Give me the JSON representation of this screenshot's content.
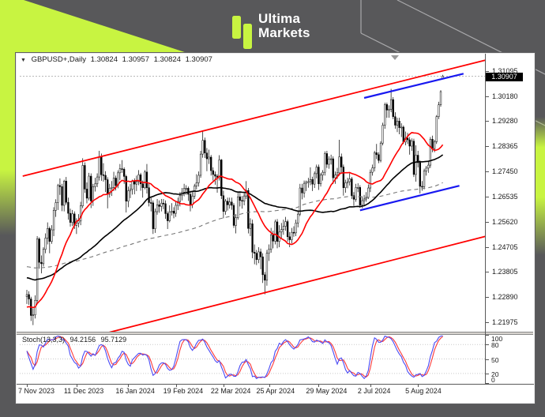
{
  "brand": {
    "line1": "Ultima",
    "line2": "Markets",
    "accent_green": "#c8f441",
    "background_gray": "#58585a"
  },
  "window": {
    "title": "GBPUSD+,Daily",
    "ohlc": {
      "open": "1.30824",
      "high": "1.30957",
      "low": "1.30824",
      "close": "1.30907"
    },
    "dropdown_icon": "▼"
  },
  "price_axis": {
    "labels": [
      "1.31095",
      "1.30180",
      "1.29280",
      "1.28365",
      "1.27450",
      "1.26535",
      "1.25620",
      "1.24705",
      "1.23805",
      "1.22890",
      "1.21975"
    ],
    "current": "1.30907"
  },
  "time_axis": {
    "ticks": [
      {
        "label": "7 Nov 2023",
        "bar": 0
      },
      {
        "label": "11 Dec 2023",
        "bar": 24
      },
      {
        "label": "16 Jan 2024",
        "bar": 49
      },
      {
        "label": "19 Feb 2024",
        "bar": 72
      },
      {
        "label": "22 Mar 2024",
        "bar": 95
      },
      {
        "label": "25 Apr 2024",
        "bar": 117
      },
      {
        "label": "29 May 2024",
        "bar": 141
      },
      {
        "label": "2 Jul 2024",
        "bar": 166
      },
      {
        "label": "5 Aug 2024",
        "bar": 189
      }
    ]
  },
  "stoch": {
    "label": "Stoch(13,3,3)",
    "value_k": "94.2156",
    "value_d": "95.7129",
    "scale": [
      "100",
      "80",
      "50",
      "20",
      "0"
    ],
    "levels": [
      80,
      50,
      20
    ]
  },
  "chart_data": {
    "type": "candlestick",
    "symbol": "GBPUSD+",
    "timeframe": "Daily",
    "last_ohlc": [
      1.30824,
      1.30957,
      1.30824,
      1.30907
    ],
    "y_range_visible": [
      1.216,
      1.3173
    ],
    "bid_line": 1.30907,
    "candles": [
      [
        1.229,
        1.2315,
        1.2264,
        1.2298
      ],
      [
        1.2298,
        1.231,
        1.2261,
        1.2282
      ],
      [
        1.2282,
        1.229,
        1.2202,
        1.2222
      ],
      [
        1.2222,
        1.2248,
        1.2187,
        1.2224
      ],
      [
        1.2224,
        1.2295,
        1.2211,
        1.2277
      ],
      [
        1.2277,
        1.251,
        1.2265,
        1.25
      ],
      [
        1.25,
        1.2506,
        1.2392,
        1.2415
      ],
      [
        1.2415,
        1.244,
        1.2375,
        1.241
      ],
      [
        1.241,
        1.247,
        1.24,
        1.2462
      ],
      [
        1.2462,
        1.252,
        1.2448,
        1.2503
      ],
      [
        1.2503,
        1.256,
        1.248,
        1.2538
      ],
      [
        1.2538,
        1.2545,
        1.2448,
        1.2491
      ],
      [
        1.2491,
        1.255,
        1.2482,
        1.2533
      ],
      [
        1.2533,
        1.2615,
        1.251,
        1.2604
      ],
      [
        1.2604,
        1.2644,
        1.258,
        1.2632
      ],
      [
        1.2632,
        1.27,
        1.2605,
        1.2694
      ],
      [
        1.2694,
        1.272,
        1.266,
        1.269
      ],
      [
        1.269,
        1.27,
        1.2601,
        1.2622
      ],
      [
        1.2622,
        1.2715,
        1.26,
        1.271
      ],
      [
        1.271,
        1.2725,
        1.2625,
        1.2633
      ],
      [
        1.2633,
        1.265,
        1.257,
        1.2593
      ],
      [
        1.2593,
        1.261,
        1.2545,
        1.256
      ],
      [
        1.256,
        1.2605,
        1.2547,
        1.2591
      ],
      [
        1.2591,
        1.26,
        1.2536,
        1.2549
      ],
      [
        1.2549,
        1.2575,
        1.2518,
        1.2558
      ],
      [
        1.2558,
        1.259,
        1.2542,
        1.2565
      ],
      [
        1.2565,
        1.2635,
        1.255,
        1.262
      ],
      [
        1.262,
        1.2793,
        1.2612,
        1.2767
      ],
      [
        1.2767,
        1.2778,
        1.2667,
        1.2681
      ],
      [
        1.2681,
        1.2705,
        1.2629,
        1.2648
      ],
      [
        1.2648,
        1.274,
        1.264,
        1.2728
      ],
      [
        1.2728,
        1.2738,
        1.2612,
        1.2638
      ],
      [
        1.2638,
        1.27,
        1.262,
        1.269
      ],
      [
        1.269,
        1.2722,
        1.2672,
        1.27
      ],
      [
        1.27,
        1.2738,
        1.2688,
        1.2725
      ],
      [
        1.2725,
        1.282,
        1.2712,
        1.2799
      ],
      [
        1.2799,
        1.281,
        1.2711,
        1.2733
      ],
      [
        1.2733,
        1.2775,
        1.2708,
        1.2731
      ],
      [
        1.2731,
        1.2746,
        1.267,
        1.2715
      ],
      [
        1.2715,
        1.2724,
        1.2611,
        1.2662
      ],
      [
        1.2662,
        1.27,
        1.265,
        1.2684
      ],
      [
        1.2684,
        1.271,
        1.2656,
        1.2687
      ],
      [
        1.2687,
        1.2744,
        1.2674,
        1.2721
      ],
      [
        1.2721,
        1.273,
        1.2676,
        1.2694
      ],
      [
        1.2694,
        1.2749,
        1.2684,
        1.274
      ],
      [
        1.274,
        1.2772,
        1.2714,
        1.2755
      ],
      [
        1.2755,
        1.2786,
        1.274,
        1.2753
      ],
      [
        1.2753,
        1.276,
        1.27,
        1.2727
      ],
      [
        1.2727,
        1.2733,
        1.2596,
        1.2637
      ],
      [
        1.2637,
        1.269,
        1.2615,
        1.2675
      ],
      [
        1.2675,
        1.27,
        1.2648,
        1.268
      ],
      [
        1.268,
        1.2715,
        1.2661,
        1.2709
      ],
      [
        1.2709,
        1.272,
        1.2662,
        1.2699
      ],
      [
        1.2699,
        1.273,
        1.2674,
        1.2708
      ],
      [
        1.2708,
        1.275,
        1.2695,
        1.2733
      ],
      [
        1.2733,
        1.274,
        1.2675,
        1.27
      ],
      [
        1.27,
        1.2712,
        1.265,
        1.2686
      ],
      [
        1.2686,
        1.275,
        1.268,
        1.2743
      ],
      [
        1.2743,
        1.2772,
        1.2665,
        1.2686
      ],
      [
        1.2686,
        1.27,
        1.2618,
        1.2632
      ],
      [
        1.2632,
        1.265,
        1.26,
        1.2631
      ],
      [
        1.2631,
        1.264,
        1.2518,
        1.2537
      ],
      [
        1.2537,
        1.261,
        1.2522,
        1.2599
      ],
      [
        1.2599,
        1.2645,
        1.2588,
        1.2624
      ],
      [
        1.2624,
        1.264,
        1.2595,
        1.2618
      ],
      [
        1.2618,
        1.2645,
        1.26,
        1.263
      ],
      [
        1.263,
        1.2645,
        1.2608,
        1.2628
      ],
      [
        1.2628,
        1.264,
        1.2573,
        1.2592
      ],
      [
        1.2592,
        1.26,
        1.2536,
        1.2566
      ],
      [
        1.2566,
        1.2622,
        1.256,
        1.2598
      ],
      [
        1.2598,
        1.263,
        1.2585,
        1.2601
      ],
      [
        1.2601,
        1.2615,
        1.2575,
        1.2593
      ],
      [
        1.2593,
        1.2635,
        1.258,
        1.2622
      ],
      [
        1.2622,
        1.265,
        1.2605,
        1.2636
      ],
      [
        1.2636,
        1.267,
        1.2618,
        1.2657
      ],
      [
        1.2657,
        1.2685,
        1.264,
        1.267
      ],
      [
        1.267,
        1.27,
        1.2655,
        1.2684
      ],
      [
        1.2684,
        1.2695,
        1.266,
        1.2684
      ],
      [
        1.2684,
        1.269,
        1.2638,
        1.2662
      ],
      [
        1.2662,
        1.2675,
        1.26,
        1.2625
      ],
      [
        1.2625,
        1.2675,
        1.2612,
        1.2655
      ],
      [
        1.2655,
        1.27,
        1.2645,
        1.2692
      ],
      [
        1.2692,
        1.2735,
        1.268,
        1.2704
      ],
      [
        1.2704,
        1.2745,
        1.269,
        1.2731
      ],
      [
        1.2731,
        1.282,
        1.2722,
        1.2808
      ],
      [
        1.2808,
        1.2894,
        1.2795,
        1.2858
      ],
      [
        1.2858,
        1.2868,
        1.2794,
        1.2812
      ],
      [
        1.2812,
        1.283,
        1.2746,
        1.2791
      ],
      [
        1.2791,
        1.2824,
        1.2772,
        1.2797
      ],
      [
        1.2797,
        1.2805,
        1.273,
        1.2748
      ],
      [
        1.2748,
        1.276,
        1.2712,
        1.2734
      ],
      [
        1.2734,
        1.2745,
        1.2697,
        1.2728
      ],
      [
        1.2728,
        1.2735,
        1.2668,
        1.2722
      ],
      [
        1.2722,
        1.2804,
        1.2712,
        1.2787
      ],
      [
        1.2787,
        1.279,
        1.2645,
        1.2657
      ],
      [
        1.2657,
        1.2675,
        1.2575,
        1.26
      ],
      [
        1.26,
        1.2645,
        1.2588,
        1.2637
      ],
      [
        1.2637,
        1.265,
        1.2603,
        1.2624
      ],
      [
        1.2624,
        1.265,
        1.261,
        1.2634
      ],
      [
        1.2634,
        1.265,
        1.2606,
        1.2622
      ],
      [
        1.2622,
        1.263,
        1.254,
        1.2549
      ],
      [
        1.2549,
        1.259,
        1.252,
        1.2577
      ],
      [
        1.2577,
        1.2668,
        1.257,
        1.2653
      ],
      [
        1.2653,
        1.267,
        1.2618,
        1.264
      ],
      [
        1.264,
        1.2656,
        1.261,
        1.2637
      ],
      [
        1.2637,
        1.267,
        1.2622,
        1.2656
      ],
      [
        1.2656,
        1.271,
        1.2645,
        1.2676
      ],
      [
        1.2676,
        1.2685,
        1.252,
        1.2538
      ],
      [
        1.2538,
        1.2575,
        1.251,
        1.2555
      ],
      [
        1.2555,
        1.257,
        1.243,
        1.2452
      ],
      [
        1.2452,
        1.248,
        1.2408,
        1.2448
      ],
      [
        1.2448,
        1.246,
        1.2405,
        1.2425
      ],
      [
        1.2425,
        1.247,
        1.2412,
        1.2453
      ],
      [
        1.2453,
        1.2465,
        1.239,
        1.2435
      ],
      [
        1.2435,
        1.2448,
        1.234,
        1.237
      ],
      [
        1.237,
        1.238,
        1.2299,
        1.235
      ],
      [
        1.235,
        1.246,
        1.233,
        1.2448
      ],
      [
        1.2448,
        1.248,
        1.242,
        1.2462
      ],
      [
        1.2462,
        1.254,
        1.245,
        1.2514
      ],
      [
        1.2514,
        1.253,
        1.2466,
        1.2492
      ],
      [
        1.2492,
        1.257,
        1.248,
        1.2562
      ],
      [
        1.2562,
        1.2572,
        1.2466,
        1.2491
      ],
      [
        1.2491,
        1.255,
        1.247,
        1.2525
      ],
      [
        1.2525,
        1.2558,
        1.25,
        1.2534
      ],
      [
        1.2534,
        1.257,
        1.2515,
        1.2546
      ],
      [
        1.2546,
        1.258,
        1.253,
        1.2563
      ],
      [
        1.2563,
        1.257,
        1.249,
        1.2508
      ],
      [
        1.2508,
        1.2525,
        1.247,
        1.2497
      ],
      [
        1.2497,
        1.254,
        1.2484,
        1.2524
      ],
      [
        1.2524,
        1.2546,
        1.2508,
        1.2522
      ],
      [
        1.2522,
        1.257,
        1.251,
        1.2558
      ],
      [
        1.2558,
        1.26,
        1.2542,
        1.259
      ],
      [
        1.259,
        1.27,
        1.2583,
        1.2685
      ],
      [
        1.2685,
        1.27,
        1.2644,
        1.2667
      ],
      [
        1.2667,
        1.2712,
        1.265,
        1.2702
      ],
      [
        1.2702,
        1.2712,
        1.2674,
        1.2706
      ],
      [
        1.2706,
        1.2722,
        1.2686,
        1.2708
      ],
      [
        1.2708,
        1.276,
        1.2695,
        1.2716
      ],
      [
        1.2716,
        1.2726,
        1.2674,
        1.2699
      ],
      [
        1.2699,
        1.2745,
        1.2685,
        1.2737
      ],
      [
        1.2737,
        1.277,
        1.272,
        1.2761
      ],
      [
        1.2761,
        1.277,
        1.2678,
        1.27
      ],
      [
        1.27,
        1.274,
        1.269,
        1.2732
      ],
      [
        1.2732,
        1.275,
        1.2712,
        1.2742
      ],
      [
        1.2742,
        1.2818,
        1.273,
        1.281
      ],
      [
        1.281,
        1.282,
        1.2758,
        1.2771
      ],
      [
        1.2771,
        1.28,
        1.2755,
        1.279
      ],
      [
        1.279,
        1.2806,
        1.277,
        1.2791
      ],
      [
        1.2791,
        1.28,
        1.27,
        1.2722
      ],
      [
        1.2722,
        1.2745,
        1.27,
        1.2732
      ],
      [
        1.2732,
        1.2758,
        1.2718,
        1.274
      ],
      [
        1.274,
        1.286,
        1.273,
        1.2798
      ],
      [
        1.2798,
        1.281,
        1.274,
        1.2761
      ],
      [
        1.2761,
        1.277,
        1.2657,
        1.2686
      ],
      [
        1.2686,
        1.2715,
        1.2668,
        1.2704
      ],
      [
        1.2704,
        1.2722,
        1.2684,
        1.2708
      ],
      [
        1.2708,
        1.2738,
        1.2694,
        1.2718
      ],
      [
        1.2718,
        1.2725,
        1.2645,
        1.2657
      ],
      [
        1.2657,
        1.267,
        1.262,
        1.2644
      ],
      [
        1.2644,
        1.27,
        1.2635,
        1.2687
      ],
      [
        1.2687,
        1.2702,
        1.267,
        1.2687
      ],
      [
        1.2687,
        1.2695,
        1.2613,
        1.2623
      ],
      [
        1.2623,
        1.2655,
        1.2612,
        1.2639
      ],
      [
        1.2639,
        1.266,
        1.2622,
        1.2645
      ],
      [
        1.2645,
        1.267,
        1.2635,
        1.265
      ],
      [
        1.265,
        1.2698,
        1.2645,
        1.2685
      ],
      [
        1.2685,
        1.2752,
        1.267,
        1.2742
      ],
      [
        1.2742,
        1.277,
        1.273,
        1.2758
      ],
      [
        1.2758,
        1.282,
        1.2745,
        1.2813
      ],
      [
        1.2813,
        1.2845,
        1.279,
        1.2806
      ],
      [
        1.2806,
        1.2815,
        1.2775,
        1.2785
      ],
      [
        1.2785,
        1.2855,
        1.2778,
        1.2848
      ],
      [
        1.2848,
        1.2922,
        1.284,
        1.2913
      ],
      [
        1.2913,
        1.2995,
        1.29,
        1.2988
      ],
      [
        1.2988,
        1.2995,
        1.294,
        1.2968
      ],
      [
        1.2968,
        1.2985,
        1.294,
        1.2971
      ],
      [
        1.2971,
        1.3045,
        1.296,
        1.3006
      ],
      [
        1.3006,
        1.3015,
        1.2935,
        1.2944
      ],
      [
        1.2944,
        1.296,
        1.29,
        1.2913
      ],
      [
        1.2913,
        1.294,
        1.2888,
        1.2928
      ],
      [
        1.2928,
        1.294,
        1.288,
        1.2904
      ],
      [
        1.2904,
        1.292,
        1.287,
        1.2906
      ],
      [
        1.2906,
        1.2912,
        1.2845,
        1.2852
      ],
      [
        1.2852,
        1.289,
        1.284,
        1.2866
      ],
      [
        1.2866,
        1.2885,
        1.2845,
        1.286
      ],
      [
        1.286,
        1.287,
        1.2806,
        1.2837
      ],
      [
        1.2837,
        1.2865,
        1.282,
        1.2855
      ],
      [
        1.2855,
        1.2864,
        1.2725,
        1.2734
      ],
      [
        1.2734,
        1.284,
        1.2708,
        1.2804
      ],
      [
        1.2804,
        1.282,
        1.276,
        1.2777
      ],
      [
        1.2777,
        1.2785,
        1.2665,
        1.2691
      ],
      [
        1.2691,
        1.271,
        1.2675,
        1.269
      ],
      [
        1.269,
        1.2755,
        1.268,
        1.2747
      ],
      [
        1.2747,
        1.2765,
        1.273,
        1.2757
      ],
      [
        1.2757,
        1.278,
        1.274,
        1.2768
      ],
      [
        1.2768,
        1.287,
        1.2758,
        1.2862
      ],
      [
        1.2862,
        1.2875,
        1.2815,
        1.2828
      ],
      [
        1.2828,
        1.286,
        1.2815,
        1.2853
      ],
      [
        1.2853,
        1.295,
        1.2845,
        1.2944
      ],
      [
        1.2944,
        1.2998,
        1.2935,
        1.2987
      ],
      [
        1.2987,
        1.304,
        1.298,
        1.3035
      ],
      [
        1.30824,
        1.30957,
        1.30824,
        1.30907
      ]
    ],
    "overlays": [
      {
        "name": "ma-fast-red",
        "type": "sma",
        "period": 20,
        "seed": 1.225,
        "color": "#ff0000",
        "width": 1.6,
        "dash": null
      },
      {
        "name": "ma-slow-black",
        "type": "sma",
        "period": 55,
        "seed": 1.236,
        "color": "#000000",
        "width": 1.6,
        "dash": null
      },
      {
        "name": "ma-long-gray",
        "type": "sma",
        "period": 130,
        "seed": 1.24,
        "color": "#777777",
        "width": 1.1,
        "dash": "5,4"
      }
    ],
    "trendlines": [
      {
        "name": "channel-upper-red",
        "color": "#ff0000",
        "width": 1.8,
        "bar1": -2,
        "price1": 1.2728,
        "bar2": 222,
        "price2": 1.315
      },
      {
        "name": "channel-lower-red",
        "color": "#ff0000",
        "width": 1.8,
        "bar1": 30,
        "price1": 1.2142,
        "bar2": 222,
        "price2": 1.251
      },
      {
        "name": "trendline-upper-blue",
        "color": "#1818f0",
        "width": 2.2,
        "bar1": 163,
        "price1": 1.3012,
        "bar2": 211,
        "price2": 1.31
      },
      {
        "name": "trendline-lower-blue",
        "color": "#1818f0",
        "width": 2.2,
        "bar1": 161,
        "price1": 1.2604,
        "bar2": 209,
        "price2": 1.2693
      }
    ],
    "stochastic": {
      "k": 13,
      "d": 3,
      "slowing": 3,
      "main_color": "#4a4af5",
      "signal_color": "#ff3a3a",
      "grid_color": "#c9c9c9"
    }
  }
}
